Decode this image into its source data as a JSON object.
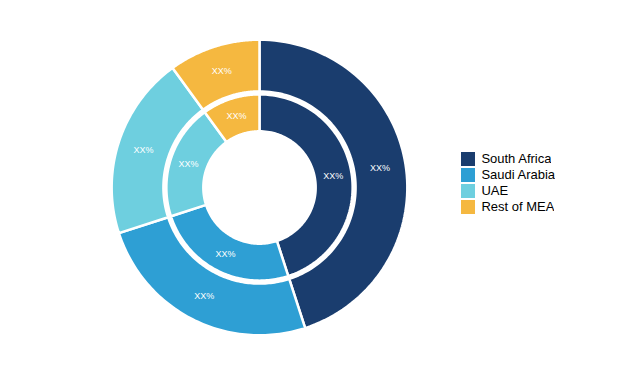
{
  "chart_data": {
    "type": "donut",
    "categories": [
      "South Africa",
      "Saudi Arabia",
      "UAE",
      "Rest of MEA"
    ],
    "colors": [
      "#1a3d6e",
      "#2e9fd4",
      "#6ecfdf",
      "#f5b840"
    ],
    "series": [
      {
        "values": [
          45,
          25,
          20,
          10
        ],
        "value_labels": [
          "XX%",
          "XX%",
          "XX%",
          "XX%"
        ]
      },
      {
        "values": [
          45,
          25,
          20,
          10
        ],
        "value_labels": [
          "XX%",
          "XX%",
          "XX%",
          "XX%"
        ]
      }
    ],
    "legend": "right"
  }
}
